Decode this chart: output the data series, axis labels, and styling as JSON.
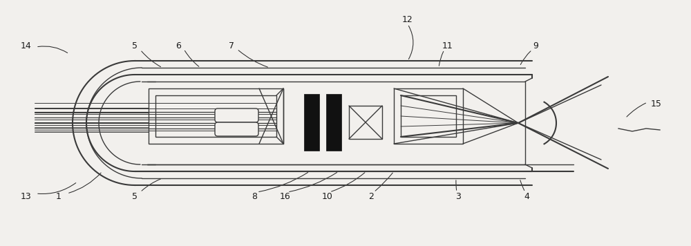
{
  "bg_color": "#f2f0ed",
  "line_color": "#3a3a3a",
  "dark_color": "#0a0a0a",
  "fig_width": 10.0,
  "fig_height": 3.56,
  "lw_outer": 1.5,
  "lw_main": 1.0,
  "lw_thin": 0.7,
  "lw_black": 0.8
}
